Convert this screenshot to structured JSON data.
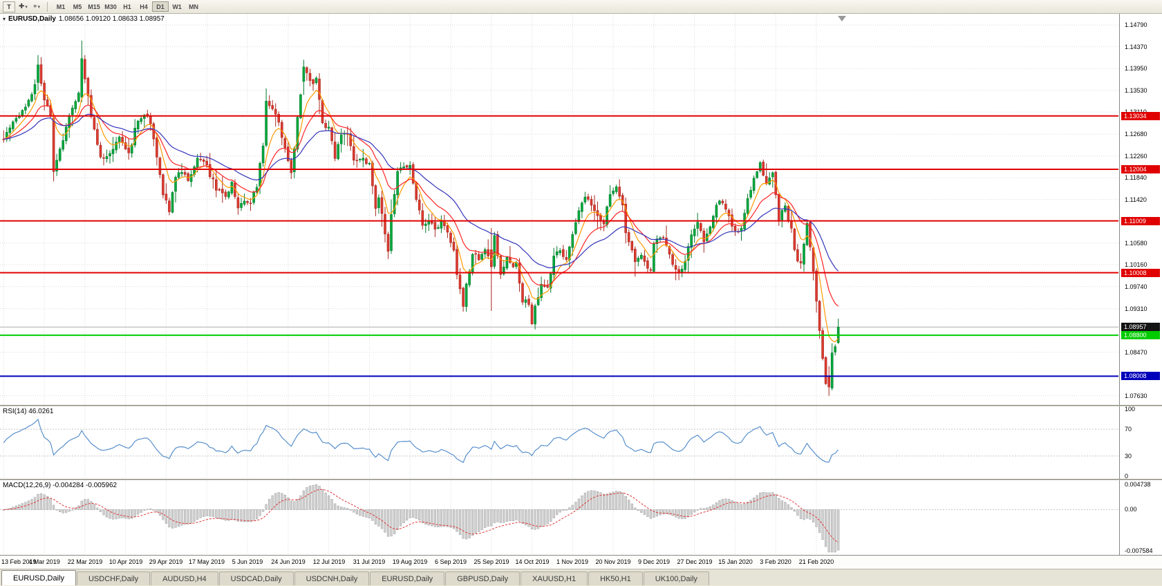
{
  "toolbar": {
    "chart_mode_button": "T",
    "cursor_tool_icon": "cursor-tool",
    "crosshair_tool_icon": "crosshair-tool",
    "timeframes": [
      "M1",
      "M5",
      "M15",
      "M30",
      "H1",
      "H4",
      "D1",
      "W1",
      "MN"
    ],
    "active_timeframe": "D1"
  },
  "chart": {
    "header": "EURUSD,Daily",
    "ohlc_text": "1.08656 1.09120 1.08633 1.08957"
  },
  "chart_data": {
    "type": "candlestick",
    "symbol": "EURUSD",
    "timeframe": "Daily",
    "visible_candles": 268,
    "x_labels": [
      "13 Feb 2019",
      "4 Mar 2019",
      "22 Mar 2019",
      "10 Apr 2019",
      "29 Apr 2019",
      "17 May 2019",
      "5 Jun 2019",
      "24 Jun 2019",
      "12 Jul 2019",
      "31 Jul 2019",
      "19 Aug 2019",
      "6 Sep 2019",
      "25 Sep 2019",
      "14 Oct 2019",
      "1 Nov 2019",
      "20 Nov 2019",
      "9 Dec 2019",
      "27 Dec 2019",
      "15 Jan 2020",
      "3 Feb 2020",
      "21 Feb 2020"
    ],
    "x_label_step": 13,
    "y_axis": {
      "price_min": 1.0748,
      "price_max": 1.1498,
      "ticks": [
        "1.14790",
        "1.14370",
        "1.13950",
        "1.13530",
        "1.13110",
        "1.12680",
        "1.12260",
        "1.11840",
        "1.11420",
        "1.10580",
        "1.10160",
        "1.09740",
        "1.09310",
        "1.08470",
        "1.07630"
      ]
    },
    "last_candle_ohlc": [
      1.08656,
      1.0912,
      1.08633,
      1.08957
    ],
    "close_path_anchors": [
      [
        0,
        1.1262
      ],
      [
        4,
        1.13
      ],
      [
        8,
        1.133
      ],
      [
        10,
        1.1368
      ],
      [
        11,
        1.1402
      ],
      [
        13,
        1.133
      ],
      [
        15,
        1.1306
      ],
      [
        16,
        1.1196
      ],
      [
        18,
        1.124
      ],
      [
        22,
        1.132
      ],
      [
        24,
        1.1346
      ],
      [
        25,
        1.1414
      ],
      [
        26,
        1.1378
      ],
      [
        28,
        1.13
      ],
      [
        31,
        1.122
      ],
      [
        34,
        1.1232
      ],
      [
        37,
        1.1258
      ],
      [
        40,
        1.1228
      ],
      [
        43,
        1.1298
      ],
      [
        46,
        1.1306
      ],
      [
        48,
        1.1262
      ],
      [
        51,
        1.1156
      ],
      [
        53,
        1.1118
      ],
      [
        55,
        1.1186
      ],
      [
        57,
        1.1198
      ],
      [
        59,
        1.1178
      ],
      [
        62,
        1.122
      ],
      [
        65,
        1.1206
      ],
      [
        68,
        1.1162
      ],
      [
        71,
        1.1152
      ],
      [
        73,
        1.1172
      ],
      [
        75,
        1.1122
      ],
      [
        77,
        1.1138
      ],
      [
        79,
        1.113
      ],
      [
        81,
        1.117
      ],
      [
        83,
        1.125
      ],
      [
        84,
        1.1336
      ],
      [
        86,
        1.1318
      ],
      [
        88,
        1.1292
      ],
      [
        91,
        1.1212
      ],
      [
        92,
        1.1196
      ],
      [
        94,
        1.1296
      ],
      [
        96,
        1.1398
      ],
      [
        98,
        1.1368
      ],
      [
        100,
        1.1372
      ],
      [
        102,
        1.1288
      ],
      [
        104,
        1.128
      ],
      [
        106,
        1.1226
      ],
      [
        108,
        1.1268
      ],
      [
        110,
        1.1266
      ],
      [
        112,
        1.1216
      ],
      [
        115,
        1.1222
      ],
      [
        117,
        1.1208
      ],
      [
        119,
        1.1128
      ],
      [
        120,
        1.1148
      ],
      [
        122,
        1.1078
      ],
      [
        123,
        1.1042
      ],
      [
        124,
        1.1108
      ],
      [
        126,
        1.1198
      ],
      [
        128,
        1.1206
      ],
      [
        130,
        1.1212
      ],
      [
        132,
        1.1142
      ],
      [
        134,
        1.1092
      ],
      [
        136,
        1.1102
      ],
      [
        138,
        1.1082
      ],
      [
        140,
        1.11
      ],
      [
        142,
        1.1078
      ],
      [
        144,
        1.104
      ],
      [
        145,
        1.0992
      ],
      [
        147,
        1.0938
      ],
      [
        148,
        1.0978
      ],
      [
        150,
        1.1035
      ],
      [
        152,
        1.1028
      ],
      [
        154,
        1.1048
      ],
      [
        156,
        1.1012
      ],
      [
        157,
        1.1068
      ],
      [
        159,
        1.1002
      ],
      [
        161,
        1.1032
      ],
      [
        163,
        1.1016
      ],
      [
        164,
        1.1022
      ],
      [
        166,
        1.0948
      ],
      [
        168,
        1.094
      ],
      [
        169,
        1.0902
      ],
      [
        170,
        1.0932
      ],
      [
        172,
        1.098
      ],
      [
        174,
        1.0976
      ],
      [
        176,
        1.103
      ],
      [
        178,
        1.1042
      ],
      [
        180,
        1.1028
      ],
      [
        182,
        1.1072
      ],
      [
        184,
        1.1125
      ],
      [
        186,
        1.1152
      ],
      [
        188,
        1.1132
      ],
      [
        190,
        1.1106
      ],
      [
        192,
        1.11
      ],
      [
        194,
        1.1155
      ],
      [
        196,
        1.1165
      ],
      [
        198,
        1.1128
      ],
      [
        199,
        1.1074
      ],
      [
        201,
        1.1042
      ],
      [
        202,
        1.1018
      ],
      [
        204,
        1.1035
      ],
      [
        206,
        1.1005
      ],
      [
        207,
        1.1
      ],
      [
        208,
        1.1051
      ],
      [
        210,
        1.1072
      ],
      [
        212,
        1.1058
      ],
      [
        214,
        1.1022
      ],
      [
        216,
        1.1002
      ],
      [
        218,
        1.1018
      ],
      [
        220,
        1.1078
      ],
      [
        222,
        1.1102
      ],
      [
        224,
        1.1062
      ],
      [
        226,
        1.1092
      ],
      [
        228,
        1.113
      ],
      [
        230,
        1.114
      ],
      [
        232,
        1.1112
      ],
      [
        234,
        1.1078
      ],
      [
        236,
        1.109
      ],
      [
        238,
        1.1145
      ],
      [
        240,
        1.1185
      ],
      [
        242,
        1.1212
      ],
      [
        244,
        1.1172
      ],
      [
        246,
        1.1196
      ],
      [
        248,
        1.1105
      ],
      [
        250,
        1.113
      ],
      [
        252,
        1.1085
      ],
      [
        253,
        1.104
      ],
      [
        254,
        1.1023
      ],
      [
        255,
        1.102
      ],
      [
        256,
        1.106
      ],
      [
        257,
        1.1094
      ],
      [
        258,
        1.1055
      ],
      [
        259,
        1.1
      ],
      [
        260,
        1.0948
      ],
      [
        261,
        1.089
      ],
      [
        262,
        1.083
      ],
      [
        263,
        1.079
      ],
      [
        264,
        1.078
      ],
      [
        265,
        1.085
      ],
      [
        266,
        1.0856
      ],
      [
        267,
        1.0896
      ]
    ],
    "special_candles": {
      "11": [
        1.1368,
        1.1421,
        1.1352,
        1.1402
      ],
      "16": [
        1.13,
        1.1306,
        1.1177,
        1.1196
      ],
      "25": [
        1.134,
        1.1449,
        1.133,
        1.1414
      ],
      "96": [
        1.137,
        1.1412,
        1.1344,
        1.1398
      ],
      "123": [
        1.1075,
        1.108,
        1.1027,
        1.1042
      ],
      "156": [
        1.1045,
        1.1087,
        1.0927,
        1.1012
      ],
      "264": [
        1.08,
        1.082,
        1.0763,
        1.078
      ],
      "267": [
        1.08656,
        1.0912,
        1.08633,
        1.08957
      ]
    },
    "horizontal_lines": [
      {
        "price": 1.13034,
        "color": "#e00000",
        "label": "1.13034"
      },
      {
        "price": 1.12004,
        "color": "#e00000",
        "label": "1.12004"
      },
      {
        "price": 1.11009,
        "color": "#e00000",
        "label": "1.11009"
      },
      {
        "price": 1.10008,
        "color": "#e00000",
        "label": "1.10008"
      },
      {
        "price": 1.088,
        "color": "#00cc00",
        "label": "1.08800"
      },
      {
        "price": 1.08008,
        "color": "#0000bb",
        "label": "1.08008"
      }
    ],
    "current_price": {
      "value": 1.08957,
      "label": "1.08957",
      "line_color": "#aaaaaa",
      "label_bg": "#141414"
    },
    "moving_averages": [
      {
        "name": "fast-ma",
        "period": 7,
        "type": "ema",
        "color": "#ff9900"
      },
      {
        "name": "medium-ma",
        "period": 16,
        "type": "ema",
        "color": "#ff2222"
      },
      {
        "name": "slow-ma",
        "period": 34,
        "type": "ema",
        "color": "#3333bb"
      }
    ],
    "candle_colors": {
      "up_fill": "#00a93c",
      "up_stroke": "#027a2b",
      "down_fill": "#dc3b30",
      "down_stroke": "#a8271e"
    },
    "grid_color": "#d9d9d9",
    "indicators": [
      {
        "name": "RSI",
        "label": "RSI(14) 46.0261",
        "period": 14,
        "current_value": 46.0261,
        "levels": [
          "100",
          "70",
          "30",
          "0"
        ],
        "line_color": "#4a86c8"
      },
      {
        "name": "MACD",
        "label": "MACD(12,26,9) -0.004284 -0.005962",
        "fast": 12,
        "slow": 26,
        "signal": 9,
        "macd_value": -0.004284,
        "signal_value": -0.005962,
        "scale_max": "0.004738",
        "scale_zero": "0.00",
        "scale_min": "-0.007584",
        "histogram_fill": "#d0d0d0",
        "histogram_stroke": "#a0a0a0",
        "signal_color": "#e03333"
      }
    ]
  },
  "tabs": [
    {
      "label": "EURUSD,Daily",
      "active": true
    },
    {
      "label": "USDCHF,Daily",
      "active": false
    },
    {
      "label": "AUDUSD,H4",
      "active": false
    },
    {
      "label": "USDCAD,Daily",
      "active": false
    },
    {
      "label": "USDCNH,Daily",
      "active": false
    },
    {
      "label": "EURUSD,Daily",
      "active": false
    },
    {
      "label": "GBPUSD,Daily",
      "active": false
    },
    {
      "label": "XAUUSD,H1",
      "active": false
    },
    {
      "label": "HK50,H1",
      "active": false
    },
    {
      "label": "UK100,Daily",
      "active": false
    }
  ]
}
